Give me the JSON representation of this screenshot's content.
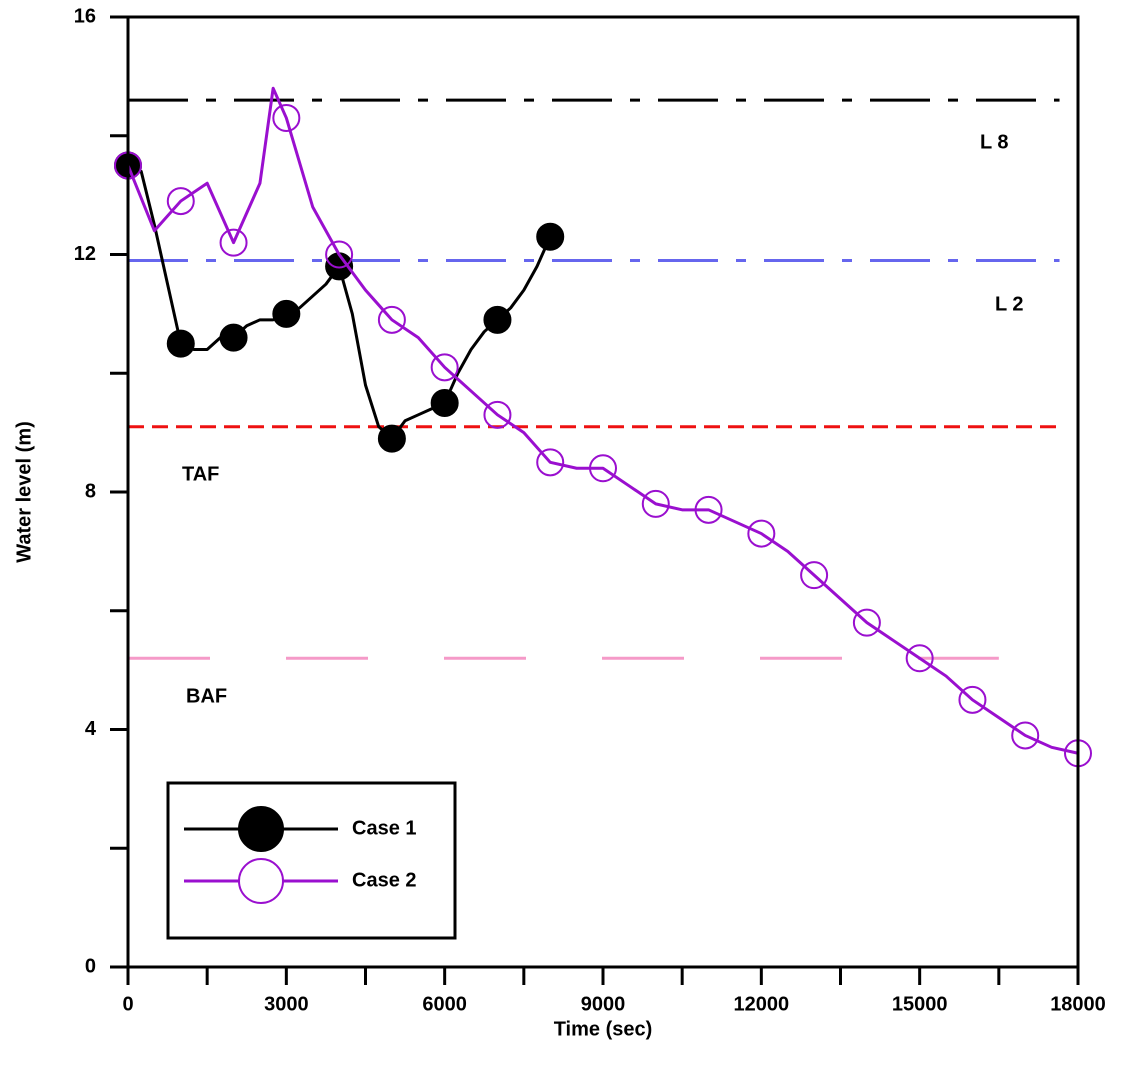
{
  "chart_data": {
    "type": "line",
    "xlabel": "Time (sec)",
    "ylabel": "Water level (m)",
    "xlim": [
      0,
      18000
    ],
    "ylim": [
      0,
      16
    ],
    "xticks": [
      0,
      3000,
      6000,
      9000,
      12000,
      15000,
      18000
    ],
    "xticks_minor": [
      1500,
      4500,
      7500,
      10500,
      13500,
      16500
    ],
    "yticks": [
      0,
      4,
      8,
      12,
      16
    ],
    "yticks_minor": [
      2,
      6,
      10,
      14
    ],
    "legend": "lower left",
    "reference_lines": [
      {
        "name": "L 8",
        "value": 14.6,
        "color": "#000000",
        "style": "dashdot",
        "x": [
          0,
          17650
        ]
      },
      {
        "name": "L 2",
        "value": 11.9,
        "color": "#6666ee",
        "style": "dashdot",
        "x": [
          0,
          17650
        ]
      },
      {
        "name": "TAF",
        "value": 9.1,
        "color": "#ee1111",
        "style": "dashed",
        "x": [
          0,
          17650
        ]
      },
      {
        "name": "BAF",
        "value": 5.2,
        "color": "#f59ac8",
        "style": "longdash",
        "x": [
          0,
          16500
        ]
      }
    ],
    "series": [
      {
        "name": "Case 1",
        "color": "#000000",
        "marker": "filled",
        "x": [
          0,
          250,
          500,
          750,
          1000,
          1250,
          1500,
          1750,
          2000,
          2250,
          2500,
          2750,
          3000,
          3250,
          3500,
          3750,
          4000,
          4250,
          4500,
          4750,
          5000,
          5250,
          5500,
          5750,
          6000,
          6250,
          6500,
          6750,
          7000,
          7250,
          7500,
          7750,
          8000
        ],
        "values": [
          13.5,
          13.4,
          12.5,
          11.5,
          10.5,
          10.4,
          10.4,
          10.6,
          10.6,
          10.8,
          10.9,
          10.9,
          11.0,
          11.1,
          11.3,
          11.5,
          11.8,
          11.0,
          9.8,
          9.1,
          8.9,
          9.2,
          9.3,
          9.4,
          9.5,
          10.0,
          10.4,
          10.7,
          10.9,
          11.1,
          11.4,
          11.8,
          12.3
        ]
      },
      {
        "name": "Case 2",
        "color": "#9a0fcf",
        "marker": "open",
        "x": [
          0,
          500,
          1000,
          1500,
          2000,
          2500,
          2750,
          3000,
          3500,
          4000,
          4500,
          5000,
          5500,
          6000,
          6500,
          7000,
          7500,
          8000,
          8500,
          9000,
          9500,
          10000,
          10500,
          11000,
          11500,
          12000,
          12500,
          13000,
          13500,
          14000,
          14500,
          15000,
          15500,
          16000,
          16500,
          17000,
          17500,
          18000
        ],
        "values": [
          13.5,
          12.4,
          12.9,
          13.2,
          12.2,
          13.2,
          14.8,
          14.3,
          12.8,
          12.0,
          11.4,
          10.9,
          10.6,
          10.1,
          9.7,
          9.3,
          9.0,
          8.5,
          8.4,
          8.4,
          8.1,
          7.8,
          7.7,
          7.7,
          7.5,
          7.3,
          7.0,
          6.6,
          6.2,
          5.8,
          5.5,
          5.2,
          4.9,
          4.5,
          4.2,
          3.9,
          3.7,
          3.6
        ]
      }
    ]
  }
}
